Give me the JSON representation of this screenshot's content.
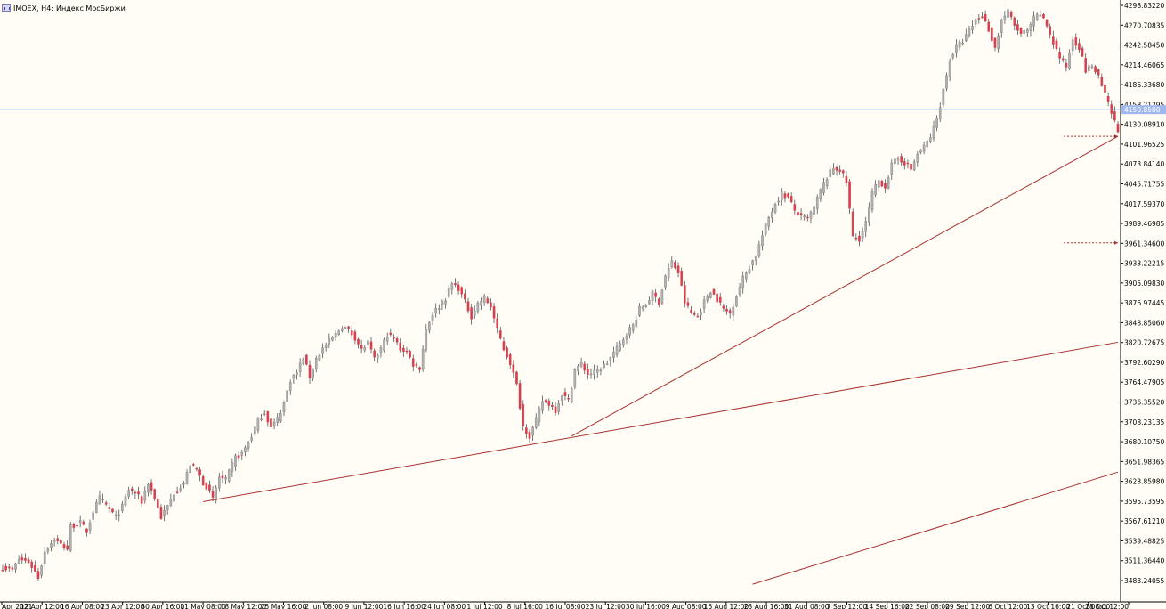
{
  "header": {
    "symbol": "IMOEX, H4:",
    "description": "Индекс МосБиржи"
  },
  "colors": {
    "background": "#fffdf5",
    "bull": "#b0b0b0",
    "bear": "#d84050",
    "wick": "#555555",
    "trendline": "#a83030",
    "price_line": "#a0b8f0",
    "price_tag_bg": "#a0b8f0",
    "axis": "#000000"
  },
  "chart_data": {
    "type": "candlestick",
    "title": "",
    "xlabel": "",
    "ylabel": "",
    "ylim": [
      3483.2,
      4298.8
    ],
    "grid": false,
    "yticks": [
      "4298.83220",
      "4270.70835",
      "4242.58450",
      "4214.46065",
      "4186.33680",
      "4158.21295",
      "4130.08910",
      "4101.96525",
      "4073.84140",
      "4045.71755",
      "4017.59370",
      "3989.46985",
      "3961.34600",
      "3933.22215",
      "3905.09830",
      "3876.97445",
      "3848.85060",
      "3820.72675",
      "3792.60290",
      "3764.47905",
      "3736.35520",
      "3708.23135",
      "3680.10750",
      "3651.98365",
      "3623.85980",
      "3595.73595",
      "3567.61210",
      "3539.48825",
      "3511.36440",
      "3483.24055"
    ],
    "xticks": [
      "Apr 2021",
      "12 Apr 12:00",
      "16 Apr 08:00",
      "23 Apr 12:00",
      "30 Apr 16:00",
      "11 May 08:00",
      "18 May 12:00",
      "25 May 16:00",
      "2 Jun 08:00",
      "9 Jun 12:00",
      "16 Jun 16:00",
      "24 Jun 08:00",
      "1 Jul 12:00",
      "8 Jul 16:00",
      "16 Jul 08:00",
      "23 Jul 12:00",
      "30 Jul 16:00",
      "9 Aug 08:00",
      "16 Aug 12:00",
      "23 Aug 16:00",
      "31 Aug 08:00",
      "7 Sep 12:00",
      "14 Sep 16:00",
      "22 Sep 08:00",
      "29 Sep 12:00",
      "6 Oct 12:00",
      "13 Oct 16:00",
      "21 Oct 08:00",
      "28 Oct 12:00"
    ],
    "current_price": "4150.8500",
    "close_path": [
      [
        0,
        3502
      ],
      [
        3,
        3498
      ],
      [
        5,
        3513
      ],
      [
        8,
        3510
      ],
      [
        10,
        3496
      ],
      [
        11,
        3488
      ],
      [
        13,
        3525
      ],
      [
        16,
        3542
      ],
      [
        18,
        3534
      ],
      [
        20,
        3528
      ],
      [
        21,
        3560
      ],
      [
        24,
        3565
      ],
      [
        26,
        3553
      ],
      [
        28,
        3582
      ],
      [
        30,
        3600
      ],
      [
        32,
        3590
      ],
      [
        35,
        3573
      ],
      [
        37,
        3588
      ],
      [
        39,
        3612
      ],
      [
        41,
        3608
      ],
      [
        43,
        3595
      ],
      [
        45,
        3622
      ],
      [
        47,
        3600
      ],
      [
        49,
        3573
      ],
      [
        51,
        3588
      ],
      [
        53,
        3608
      ],
      [
        56,
        3621
      ],
      [
        58,
        3648
      ],
      [
        60,
        3640
      ],
      [
        62,
        3622
      ],
      [
        63,
        3617
      ],
      [
        65,
        3598
      ],
      [
        67,
        3630
      ],
      [
        69,
        3625
      ],
      [
        72,
        3658
      ],
      [
        74,
        3663
      ],
      [
        77,
        3688
      ],
      [
        79,
        3710
      ],
      [
        81,
        3722
      ],
      [
        83,
        3700
      ],
      [
        85,
        3712
      ],
      [
        87,
        3735
      ],
      [
        89,
        3768
      ],
      [
        91,
        3778
      ],
      [
        93,
        3800
      ],
      [
        95,
        3772
      ],
      [
        97,
        3798
      ],
      [
        99,
        3812
      ],
      [
        101,
        3822
      ],
      [
        103,
        3832
      ],
      [
        105,
        3844
      ],
      [
        107,
        3838
      ],
      [
        109,
        3828
      ],
      [
        111,
        3810
      ],
      [
        113,
        3820
      ],
      [
        115,
        3796
      ],
      [
        117,
        3812
      ],
      [
        119,
        3832
      ],
      [
        121,
        3826
      ],
      [
        123,
        3812
      ],
      [
        125,
        3808
      ],
      [
        127,
        3790
      ],
      [
        129,
        3785
      ],
      [
        131,
        3840
      ],
      [
        133,
        3862
      ],
      [
        135,
        3872
      ],
      [
        137,
        3884
      ],
      [
        139,
        3904
      ],
      [
        141,
        3898
      ],
      [
        143,
        3878
      ],
      [
        145,
        3858
      ],
      [
        147,
        3876
      ],
      [
        149,
        3884
      ],
      [
        151,
        3872
      ],
      [
        153,
        3838
      ],
      [
        155,
        3812
      ],
      [
        157,
        3792
      ],
      [
        159,
        3760
      ],
      [
        161,
        3702
      ],
      [
        163,
        3688
      ],
      [
        165,
        3710
      ],
      [
        167,
        3738
      ],
      [
        169,
        3734
      ],
      [
        171,
        3725
      ],
      [
        173,
        3748
      ],
      [
        175,
        3738
      ],
      [
        177,
        3782
      ],
      [
        179,
        3790
      ],
      [
        181,
        3776
      ],
      [
        183,
        3778
      ],
      [
        185,
        3784
      ],
      [
        187,
        3792
      ],
      [
        189,
        3806
      ],
      [
        191,
        3818
      ],
      [
        193,
        3834
      ],
      [
        195,
        3845
      ],
      [
        197,
        3868
      ],
      [
        199,
        3875
      ],
      [
        201,
        3890
      ],
      [
        203,
        3878
      ],
      [
        205,
        3915
      ],
      [
        207,
        3935
      ],
      [
        209,
        3920
      ],
      [
        211,
        3878
      ],
      [
        213,
        3862
      ],
      [
        215,
        3858
      ],
      [
        217,
        3878
      ],
      [
        219,
        3895
      ],
      [
        221,
        3882
      ],
      [
        223,
        3868
      ],
      [
        225,
        3862
      ],
      [
        227,
        3888
      ],
      [
        229,
        3912
      ],
      [
        231,
        3928
      ],
      [
        233,
        3945
      ],
      [
        235,
        3972
      ],
      [
        237,
        3998
      ],
      [
        239,
        4018
      ],
      [
        241,
        4032
      ],
      [
        243,
        4026
      ],
      [
        245,
        4008
      ],
      [
        247,
        3998
      ],
      [
        249,
        3996
      ],
      [
        251,
        4012
      ],
      [
        253,
        4036
      ],
      [
        255,
        4055
      ],
      [
        257,
        4068
      ],
      [
        259,
        4066
      ],
      [
        261,
        4048
      ],
      [
        263,
        3970
      ],
      [
        265,
        3968
      ],
      [
        267,
        3990
      ],
      [
        269,
        4032
      ],
      [
        271,
        4050
      ],
      [
        273,
        4042
      ],
      [
        275,
        4072
      ],
      [
        277,
        4082
      ],
      [
        279,
        4076
      ],
      [
        281,
        4066
      ],
      [
        283,
        4088
      ],
      [
        285,
        4098
      ],
      [
        287,
        4112
      ],
      [
        289,
        4138
      ],
      [
        291,
        4178
      ],
      [
        293,
        4222
      ],
      [
        295,
        4240
      ],
      [
        297,
        4248
      ],
      [
        299,
        4262
      ],
      [
        301,
        4278
      ],
      [
        303,
        4284
      ],
      [
        305,
        4265
      ],
      [
        307,
        4238
      ],
      [
        309,
        4278
      ],
      [
        311,
        4290
      ],
      [
        313,
        4270
      ],
      [
        315,
        4258
      ],
      [
        317,
        4262
      ],
      [
        319,
        4280
      ],
      [
        321,
        4286
      ],
      [
        323,
        4270
      ],
      [
        325,
        4246
      ],
      [
        327,
        4225
      ],
      [
        329,
        4212
      ],
      [
        331,
        4252
      ],
      [
        333,
        4240
      ],
      [
        335,
        4206
      ],
      [
        337,
        4214
      ],
      [
        339,
        4196
      ],
      [
        341,
        4172
      ],
      [
        343,
        4146
      ],
      [
        345,
        4120
      ]
    ],
    "trendlines": [
      {
        "from": [
          62,
          3595
        ],
        "to": [
          345,
          3821
        ]
      },
      {
        "from": [
          176,
          3688
        ],
        "to": [
          345,
          4113
        ]
      },
      {
        "from": [
          232,
          3478
        ],
        "to": [
          345,
          3637
        ]
      }
    ],
    "markers": [
      {
        "from": [
          331,
          4113
        ],
        "to": [
          345,
          4113
        ]
      },
      {
        "from": [
          331,
          3962
        ],
        "to": [
          345,
          3962
        ]
      }
    ]
  }
}
